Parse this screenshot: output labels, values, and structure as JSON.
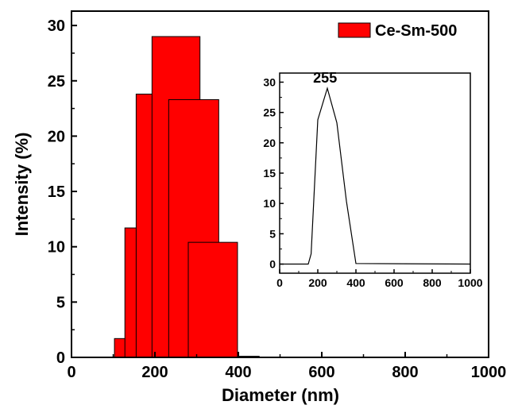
{
  "chart_data": [
    {
      "type": "bar",
      "xlabel": "Diameter (nm)",
      "ylabel": "Intensity (%)",
      "xlim": [
        0,
        1000
      ],
      "ylim": [
        0,
        31.3
      ],
      "xticks": [
        "0",
        "200",
        "400",
        "600",
        "800",
        "1000"
      ],
      "yticks": [
        "0",
        "5",
        "10",
        "15",
        "20",
        "25",
        "30"
      ],
      "bar_color": "#ff0000",
      "legend": {
        "label": "Ce-Sm-500",
        "position": "top-right"
      },
      "bars": [
        {
          "x0": 103,
          "x1": 130,
          "value": 1.7
        },
        {
          "x0": 128,
          "x1": 160,
          "value": 11.7
        },
        {
          "x0": 155,
          "x1": 195,
          "value": 23.8
        },
        {
          "x0": 193,
          "x1": 308,
          "value": 29.0
        },
        {
          "x0": 233,
          "x1": 353,
          "value": 23.3
        },
        {
          "x0": 280,
          "x1": 398,
          "value": 10.4
        },
        {
          "x0": 398,
          "x1": 450,
          "value": 0.1
        }
      ]
    },
    {
      "type": "line",
      "placement": "inset",
      "xlim": [
        0,
        1000
      ],
      "ylim": [
        -1.5,
        31.5
      ],
      "xticks": [
        "0",
        "200",
        "400",
        "600",
        "800",
        "1000"
      ],
      "yticks": [
        "0",
        "5",
        "10",
        "15",
        "20",
        "25",
        "30"
      ],
      "annotation": {
        "text": "255",
        "x": 255,
        "y": 29
      },
      "x": [
        0,
        150,
        165,
        200,
        250,
        300,
        350,
        400,
        1000
      ],
      "y": [
        0,
        0,
        1.7,
        23.8,
        29.0,
        23.3,
        10.4,
        0.1,
        0
      ]
    }
  ]
}
